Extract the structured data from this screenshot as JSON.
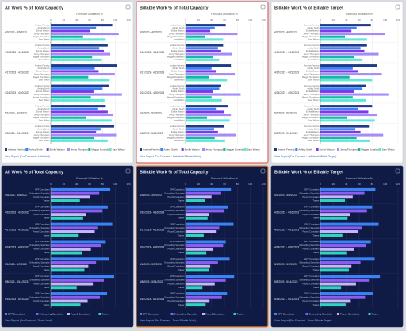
{
  "chart_data": [
    {
      "type": "bar",
      "orientation": "horizontal",
      "theme": "light",
      "title": "All Work % of Total Capacity",
      "x_label": "Forecast Utilization %",
      "categories": [
        "4/3/2023 - 4/9/2023",
        "4/10/2023 - 4/16/2023",
        "4/17/2023 - 4/23/2023",
        "4/24/2023 - 4/30/2023",
        "5/1/2023 - 5/7/2023",
        "5/8/2023 - 5/14/2023"
      ],
      "series": [
        {
          "name": "Andrew Ferreira",
          "color": "#1e3a8a",
          "values": [
            95,
            88,
            102,
            90,
            85,
            98
          ]
        },
        {
          "name": "Ashley Smith",
          "color": "#3b82f6",
          "values": [
            70,
            75,
            68,
            80,
            72,
            77
          ]
        },
        {
          "name": "Emilia Watson",
          "color": "#7c3aed",
          "values": [
            60,
            82,
            74,
            66,
            88,
            70
          ]
        },
        {
          "name": "Jenny Thompson",
          "color": "#a78bfa",
          "values": [
            105,
            92,
            99,
            110,
            96,
            101
          ]
        },
        {
          "name": "Maggie Donaldson",
          "color": "#14b8a6",
          "values": [
            50,
            64,
            58,
            62,
            55,
            67
          ]
        },
        {
          "name": "Sam Wilson",
          "color": "#5eead4",
          "values": [
            85,
            79,
            91,
            83,
            94,
            88
          ]
        }
      ],
      "xlim": [
        0,
        120
      ],
      "xticks": [
        0,
        20,
        40,
        60,
        80,
        100,
        120
      ],
      "grid": true,
      "legend": "bottom",
      "link": "View Report (Pro Forecast - Individual)"
    },
    {
      "type": "bar",
      "orientation": "horizontal",
      "theme": "light",
      "title": "Billable Work % of Total Capacity",
      "x_label": "Forecast Utilization %",
      "categories": [
        "4/3/2023 - 4/9/2023",
        "4/10/2023 - 4/16/2023",
        "4/17/2023 - 4/23/2023",
        "4/24/2023 - 4/30/2023",
        "5/1/2023 - 5/7/2023",
        "5/8/2023 - 5/14/2023"
      ],
      "series": [
        {
          "name": "Andrew Ferreira",
          "color": "#1e3a8a",
          "values": [
            62,
            58,
            70,
            55,
            66,
            60
          ]
        },
        {
          "name": "Ashley Smith",
          "color": "#3b82f6",
          "values": [
            45,
            50,
            40,
            52,
            48,
            44
          ]
        },
        {
          "name": "Emilia Watson",
          "color": "#7c3aed",
          "values": [
            38,
            55,
            47,
            42,
            60,
            50
          ]
        },
        {
          "name": "Jenny Thompson",
          "color": "#a78bfa",
          "values": [
            80,
            72,
            76,
            85,
            70,
            78
          ]
        },
        {
          "name": "Maggie Donaldson",
          "color": "#14b8a6",
          "values": [
            30,
            42,
            36,
            40,
            33,
            45
          ]
        },
        {
          "name": "Sam Wilson",
          "color": "#5eead4",
          "values": [
            58,
            52,
            64,
            56,
            68,
            61
          ]
        }
      ],
      "xlim": [
        0,
        120
      ],
      "xticks": [
        0,
        20,
        40,
        60,
        80,
        100,
        120
      ],
      "grid": true,
      "legend": "bottom",
      "link": "View Report (Pro Forecast - Individual Billable Work)"
    },
    {
      "type": "bar",
      "orientation": "horizontal",
      "theme": "light",
      "title": "Billable Work % of Billable Target",
      "x_label": "Forecast Utilization %",
      "categories": [
        "4/3/2023 - 4/9/2023",
        "4/10/2023 - 4/16/2023",
        "4/17/2023 - 4/23/2023",
        "4/24/2023 - 4/30/2023",
        "5/1/2023 - 5/7/2023",
        "5/8/2023 - 5/14/2023"
      ],
      "series": [
        {
          "name": "Andrew Ferreira",
          "color": "#1e3a8a",
          "values": [
            78,
            72,
            88,
            70,
            80,
            75
          ]
        },
        {
          "name": "Ashley Smith",
          "color": "#3b82f6",
          "values": [
            56,
            62,
            50,
            65,
            58,
            54
          ]
        },
        {
          "name": "Emilia Watson",
          "color": "#7c3aed",
          "values": [
            48,
            68,
            58,
            52,
            74,
            62
          ]
        },
        {
          "name": "Jenny Thompson",
          "color": "#a78bfa",
          "values": [
            100,
            90,
            95,
            105,
            88,
            97
          ]
        },
        {
          "name": "Maggie Donaldson",
          "color": "#14b8a6",
          "values": [
            38,
            52,
            45,
            50,
            41,
            56
          ]
        },
        {
          "name": "Sam Wilson",
          "color": "#5eead4",
          "values": [
            72,
            65,
            80,
            70,
            84,
            76
          ]
        }
      ],
      "xlim": [
        0,
        120
      ],
      "xticks": [
        0,
        20,
        40,
        60,
        80,
        100,
        120
      ],
      "grid": true,
      "legend": "bottom",
      "link": "View Report (Pro Forecast - Individual Billable Target)"
    },
    {
      "type": "bar",
      "orientation": "horizontal",
      "theme": "dark",
      "title": "All Work % of Total Capacity",
      "x_label": "Forecast Utilization %",
      "categories": [
        "4/3/2023 - 4/9/2023",
        "4/10/2023 - 4/16/2023",
        "4/17/2023 - 4/23/2023",
        "4/24/2023 - 4/30/2023",
        "5/1/2023 - 5/7/2023",
        "5/8/2023 - 5/14/2023",
        "5/15/2023 - 5/21/2023"
      ],
      "series": [
        {
          "name": "EPP Consultant",
          "color": "#3b82f6",
          "values": [
            92,
            88,
            95,
            85,
            90,
            98,
            87
          ]
        },
        {
          "name": "Onboarding Specialist",
          "color": "#8b5cf6",
          "values": [
            75,
            80,
            72,
            78,
            70,
            82,
            76
          ]
        },
        {
          "name": "Payroll Consultant",
          "color": "#c4b5fd",
          "values": [
            60,
            55,
            68,
            62,
            58,
            65,
            57
          ]
        },
        {
          "name": "Trainer",
          "color": "#2dd4bf",
          "values": [
            45,
            50,
            42,
            48,
            52,
            40,
            46
          ]
        }
      ],
      "xlim": [
        0,
        120
      ],
      "xticks": [
        0,
        20,
        40,
        60,
        80,
        100,
        120
      ],
      "grid": true,
      "legend": "bottom",
      "link": "View Report (Pro Forecast - Team Level)"
    },
    {
      "type": "bar",
      "orientation": "horizontal",
      "theme": "dark",
      "title": "Billable Work % of Total Capacity",
      "x_label": "Forecast Utilization %",
      "categories": [
        "4/3/2023 - 4/9/2023",
        "4/10/2023 - 4/16/2023",
        "4/17/2023 - 4/23/2023",
        "4/24/2023 - 4/30/2023",
        "5/1/2023 - 5/7/2023",
        "5/8/2023 - 5/14/2023",
        "5/15/2023 - 5/21/2023"
      ],
      "series": [
        {
          "name": "EPP Consultant",
          "color": "#3b82f6",
          "values": [
            70,
            66,
            74,
            62,
            68,
            75,
            64
          ]
        },
        {
          "name": "Onboarding Specialist",
          "color": "#8b5cf6",
          "values": [
            55,
            60,
            52,
            58,
            50,
            62,
            56
          ]
        },
        {
          "name": "Payroll Consultant",
          "color": "#c4b5fd",
          "values": [
            40,
            36,
            48,
            42,
            38,
            45,
            37
          ]
        },
        {
          "name": "Trainer",
          "color": "#2dd4bf",
          "values": [
            30,
            34,
            28,
            32,
            36,
            26,
            31
          ]
        }
      ],
      "xlim": [
        0,
        120
      ],
      "xticks": [
        0,
        20,
        40,
        60,
        80,
        100,
        120
      ],
      "grid": true,
      "legend": "bottom",
      "link": "View Report (Pro Forecast - Team Billable Work)"
    },
    {
      "type": "bar",
      "orientation": "horizontal",
      "theme": "dark",
      "title": "Billable Work % of Billable Target",
      "x_label": "Forecast Utilization %",
      "categories": [
        "4/3/2023 - 4/9/2023",
        "4/10/2023 - 4/16/2023",
        "4/17/2023 - 4/23/2023",
        "4/24/2023 - 4/30/2023",
        "5/1/2023 - 5/7/2023",
        "5/8/2023 - 5/14/2023",
        "5/15/2023 - 5/21/2023"
      ],
      "series": [
        {
          "name": "EPP Consultant",
          "color": "#3b82f6",
          "values": [
            85,
            80,
            90,
            78,
            84,
            92,
            81
          ]
        },
        {
          "name": "Onboarding Specialist",
          "color": "#8b5cf6",
          "values": [
            68,
            72,
            64,
            70,
            62,
            75,
            69
          ]
        },
        {
          "name": "Payroll Consultant",
          "color": "#c4b5fd",
          "values": [
            50,
            46,
            58,
            52,
            48,
            55,
            47
          ]
        },
        {
          "name": "Trainer",
          "color": "#2dd4bf",
          "values": [
            38,
            42,
            34,
            40,
            44,
            32,
            39
          ]
        }
      ],
      "xlim": [
        0,
        120
      ],
      "xticks": [
        0,
        20,
        40,
        60,
        80,
        100,
        120
      ],
      "grid": true,
      "legend": "bottom",
      "link": "View Report (Pro Forecast - Team Billable Target)"
    }
  ]
}
